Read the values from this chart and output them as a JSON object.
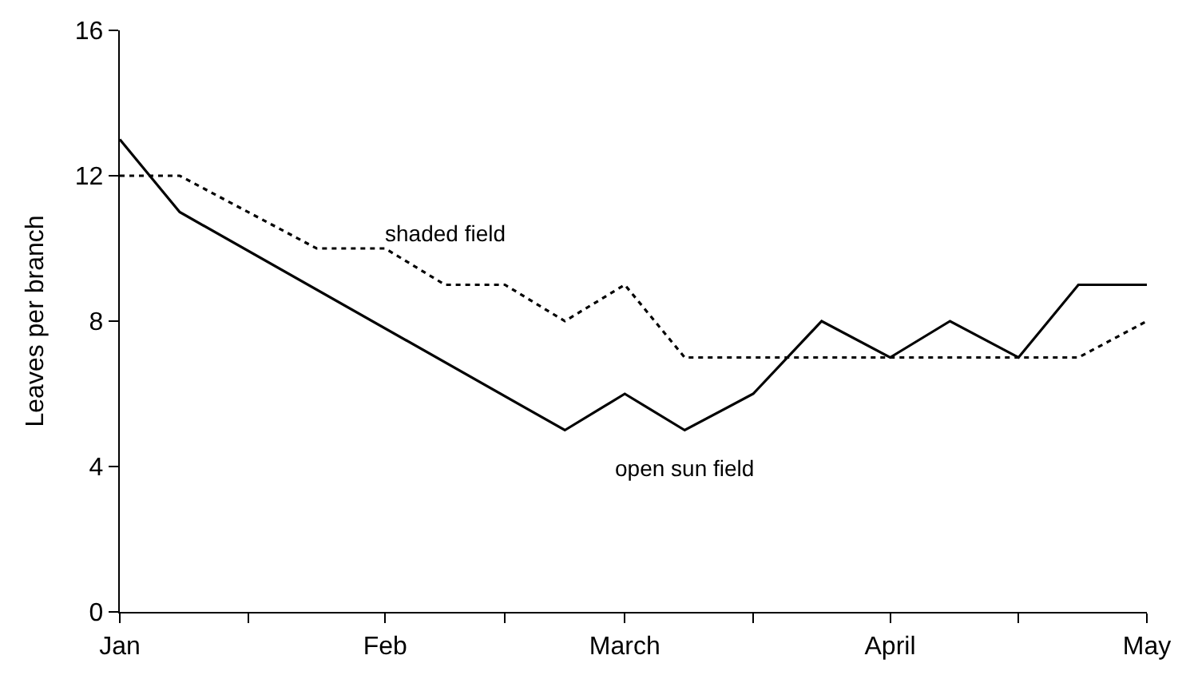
{
  "chart_data": {
    "type": "line",
    "ylabel": "Leaves per branch",
    "xlim": [
      "--01-01",
      "--05-01"
    ],
    "xticks": [
      {
        "value": "--01-01",
        "label": "Jan"
      },
      {
        "value": "--01-16",
        "label": null
      },
      {
        "value": "--02-01",
        "label": "Feb"
      },
      {
        "value": "--02-15",
        "label": null
      },
      {
        "value": "--03-01",
        "label": "March"
      },
      {
        "value": "--03-16",
        "label": null
      },
      {
        "value": "--04-01",
        "label": "April"
      },
      {
        "value": "--04-16",
        "label": null
      },
      {
        "value": "--05-01",
        "label": "May"
      }
    ],
    "ylim": [
      0,
      16
    ],
    "yticks": [
      0,
      4,
      8,
      12,
      16
    ],
    "grid": false,
    "legend": false,
    "marker": "none",
    "series": [
      {
        "name": "open sun field",
        "color": "#000000",
        "line_style": "solid",
        "x": [
          "--01-01",
          "--01-08",
          "--02-22",
          "--03-01",
          "--03-08",
          "--03-16",
          "--03-24",
          "--04-01",
          "--04-08",
          "--04-16",
          "--04-23",
          "--05-01"
        ],
        "values": [
          13,
          11,
          5,
          6,
          5,
          6,
          8,
          7,
          8,
          7,
          9,
          9
        ]
      },
      {
        "name": "shaded field",
        "color": "#000000",
        "line_style": "dotted",
        "x": [
          "--01-01",
          "--01-08",
          "--01-24",
          "--02-01",
          "--02-08",
          "--02-15",
          "--02-22",
          "--03-01",
          "--03-08",
          "--03-16",
          "--03-24",
          "--04-01",
          "--04-08",
          "--04-16",
          "--04-23",
          "--05-01"
        ],
        "values": [
          12,
          12,
          10,
          10,
          9,
          9,
          8,
          9,
          7,
          7,
          7,
          7,
          7,
          7,
          7,
          8
        ]
      }
    ]
  }
}
